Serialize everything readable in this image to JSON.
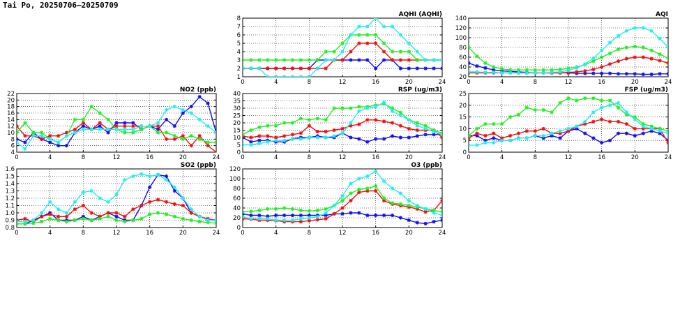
{
  "title": "Tai Po, 20250706–20250709",
  "colors": {
    "blue": "#1010ee",
    "red": "#ee1010",
    "green": "#22ee22",
    "cyan": "#22eeee"
  },
  "chart_data": [
    {
      "id": "aqhi",
      "type": "line",
      "title": "AQHI (AQHI)",
      "x": [
        0,
        1,
        2,
        3,
        4,
        5,
        6,
        7,
        8,
        9,
        10,
        11,
        12,
        13,
        14,
        15,
        16,
        17,
        18,
        19,
        20,
        21,
        22,
        23,
        24
      ],
      "xticks": [
        0,
        4,
        8,
        12,
        16,
        20,
        24
      ],
      "xlim": [
        0,
        24
      ],
      "ylim": [
        1,
        8
      ],
      "yticks": [
        1,
        2,
        3,
        4,
        5,
        6,
        7,
        8
      ],
      "grid": true,
      "series": [
        {
          "color": "blue",
          "values": [
            2,
            2,
            2,
            2,
            2,
            2,
            2,
            2,
            2,
            3,
            3,
            3,
            3,
            3,
            3,
            3,
            2,
            3,
            3,
            2,
            2,
            2,
            2,
            2,
            2
          ]
        },
        {
          "color": "red",
          "values": [
            2,
            2,
            2,
            2,
            2,
            2,
            2,
            2,
            2,
            2,
            2,
            3,
            3,
            4,
            5,
            5,
            5,
            4,
            3,
            3,
            3,
            3,
            3,
            3,
            3
          ]
        },
        {
          "color": "green",
          "values": [
            3,
            3,
            3,
            3,
            3,
            3,
            3,
            3,
            3,
            3,
            4,
            4,
            5,
            6,
            6,
            6,
            6,
            5,
            4,
            4,
            4,
            3,
            3,
            3,
            3
          ]
        },
        {
          "color": "cyan",
          "values": [
            2,
            2,
            2,
            1,
            1,
            1,
            1,
            1,
            1,
            2,
            3,
            3,
            4,
            6,
            7,
            7,
            8,
            7,
            7,
            6,
            5,
            4,
            3,
            3,
            3
          ]
        }
      ]
    },
    {
      "id": "aqi",
      "type": "line",
      "title": "AQI",
      "x": [
        0,
        1,
        2,
        3,
        4,
        5,
        6,
        7,
        8,
        9,
        10,
        11,
        12,
        13,
        14,
        15,
        16,
        17,
        18,
        19,
        20,
        21,
        22,
        23,
        24
      ],
      "xticks": [
        0,
        4,
        8,
        12,
        16,
        20,
        24
      ],
      "xlim": [
        0,
        24
      ],
      "ylim": [
        20,
        140
      ],
      "yticks": [
        20,
        40,
        60,
        80,
        100,
        120,
        140
      ],
      "grid": true,
      "series": [
        {
          "color": "blue",
          "values": [
            48,
            42,
            38,
            34,
            32,
            31,
            30,
            29,
            28,
            28,
            28,
            28,
            28,
            27,
            27,
            27,
            27,
            27,
            26,
            26,
            26,
            25,
            25,
            26,
            26
          ]
        },
        {
          "color": "red",
          "values": [
            28,
            28,
            28,
            28,
            28,
            28,
            28,
            28,
            28,
            28,
            28,
            28,
            29,
            30,
            32,
            35,
            40,
            46,
            52,
            57,
            60,
            60,
            57,
            53,
            48
          ]
        },
        {
          "color": "green",
          "values": [
            80,
            62,
            48,
            40,
            36,
            34,
            34,
            34,
            34,
            34,
            34,
            35,
            37,
            40,
            45,
            52,
            60,
            68,
            76,
            80,
            82,
            80,
            74,
            66,
            58
          ]
        },
        {
          "color": "cyan",
          "values": [
            30,
            30,
            29,
            29,
            28,
            28,
            28,
            28,
            28,
            28,
            29,
            30,
            33,
            38,
            46,
            58,
            74,
            90,
            104,
            114,
            120,
            120,
            114,
            98,
            80
          ]
        }
      ]
    },
    {
      "id": "no2",
      "type": "line",
      "title": "NO2 (ppb)",
      "x": [
        0,
        1,
        2,
        3,
        4,
        5,
        6,
        7,
        8,
        9,
        10,
        11,
        12,
        13,
        14,
        15,
        16,
        17,
        18,
        19,
        20,
        21,
        22,
        23,
        24
      ],
      "xticks": [
        0,
        4,
        8,
        12,
        16,
        20,
        24
      ],
      "xlim": [
        0,
        24
      ],
      "ylim": [
        4,
        22
      ],
      "yticks": [
        4,
        6,
        8,
        10,
        12,
        14,
        16,
        18,
        20,
        22
      ],
      "grid": true,
      "series": [
        {
          "color": "blue",
          "values": [
            8,
            7,
            10,
            8,
            7,
            6,
            6,
            10,
            12,
            11,
            12,
            10,
            13,
            13,
            13,
            11,
            12,
            11,
            14,
            12,
            16,
            18,
            21,
            19,
            10
          ]
        },
        {
          "color": "red",
          "values": [
            12,
            9,
            9,
            8,
            9,
            9,
            10,
            11,
            13,
            11,
            13,
            11,
            12,
            12,
            12,
            12,
            12,
            12,
            8,
            8,
            9,
            6,
            9,
            6,
            4
          ]
        },
        {
          "color": "green",
          "values": [
            10,
            13,
            10,
            10,
            8,
            7,
            9,
            14,
            14,
            18,
            16,
            14,
            11,
            10,
            10,
            11,
            12,
            10,
            10,
            9,
            8,
            9,
            8,
            7,
            7
          ]
        },
        {
          "color": "cyan",
          "values": [
            7,
            5,
            9,
            9,
            8,
            7,
            9,
            10,
            11,
            11,
            11,
            11,
            11,
            11,
            11,
            12,
            12,
            13,
            17,
            18,
            17,
            16,
            14,
            12,
            10
          ]
        }
      ]
    },
    {
      "id": "rsp",
      "type": "line",
      "title": "RSP (ug/m3)",
      "x": [
        0,
        1,
        2,
        3,
        4,
        5,
        6,
        7,
        8,
        9,
        10,
        11,
        12,
        13,
        14,
        15,
        16,
        17,
        18,
        19,
        20,
        21,
        22,
        23,
        24
      ],
      "xticks": [
        0,
        4,
        8,
        12,
        16,
        20,
        24
      ],
      "xlim": [
        0,
        24
      ],
      "ylim": [
        0,
        40
      ],
      "yticks": [
        0,
        5,
        10,
        15,
        20,
        25,
        30,
        35,
        40
      ],
      "grid": true,
      "series": [
        {
          "color": "blue",
          "values": [
            10,
            7,
            8,
            8,
            7,
            7,
            9,
            10,
            10,
            11,
            10,
            10,
            13,
            10,
            9,
            7,
            9,
            9,
            11,
            10,
            10,
            11,
            12,
            12,
            12
          ]
        },
        {
          "color": "red",
          "values": [
            11,
            10,
            11,
            11,
            10,
            11,
            12,
            13,
            18,
            14,
            14,
            15,
            16,
            18,
            19,
            22,
            22,
            21,
            20,
            18,
            16,
            15,
            15,
            15,
            10
          ]
        },
        {
          "color": "green",
          "values": [
            12,
            15,
            17,
            18,
            18,
            20,
            20,
            23,
            22,
            23,
            22,
            30,
            30,
            30,
            31,
            31,
            32,
            33,
            30,
            27,
            22,
            20,
            18,
            15,
            13
          ]
        },
        {
          "color": "cyan",
          "values": [
            5,
            5,
            6,
            7,
            8,
            8,
            9,
            9,
            10,
            10,
            10,
            11,
            13,
            20,
            28,
            30,
            31,
            34,
            28,
            25,
            22,
            18,
            16,
            14,
            12
          ]
        }
      ]
    },
    {
      "id": "fsp",
      "type": "line",
      "title": "FSP (ug/m3)",
      "x": [
        0,
        1,
        2,
        3,
        4,
        5,
        6,
        7,
        8,
        9,
        10,
        11,
        12,
        13,
        14,
        15,
        16,
        17,
        18,
        19,
        20,
        21,
        22,
        23,
        24
      ],
      "xticks": [
        0,
        4,
        8,
        12,
        16,
        20,
        24
      ],
      "xlim": [
        0,
        24
      ],
      "ylim": [
        0,
        25
      ],
      "yticks": [
        0,
        5,
        10,
        15,
        20,
        25
      ],
      "grid": true,
      "series": [
        {
          "color": "blue",
          "values": [
            7,
            7,
            5,
            6,
            5,
            5,
            6,
            6,
            7,
            6,
            7,
            6,
            9,
            10,
            8,
            6,
            4,
            5,
            8,
            8,
            7,
            8,
            9,
            8,
            5
          ]
        },
        {
          "color": "red",
          "values": [
            6,
            8,
            7,
            8,
            6,
            7,
            8,
            9,
            9,
            10,
            8,
            8,
            9,
            11,
            12,
            13,
            14,
            13,
            13,
            12,
            10,
            10,
            10,
            10,
            4
          ]
        },
        {
          "color": "green",
          "values": [
            7,
            10,
            12,
            12,
            12,
            15,
            16,
            19,
            18,
            18,
            17,
            21,
            23,
            22,
            23,
            23,
            22,
            22,
            19,
            16,
            15,
            12,
            11,
            10,
            9
          ]
        },
        {
          "color": "cyan",
          "values": [
            3,
            3,
            4,
            4,
            5,
            5,
            6,
            6,
            7,
            7,
            8,
            9,
            10,
            11,
            13,
            17,
            19,
            20,
            21,
            17,
            14,
            11,
            10,
            9,
            8
          ]
        }
      ]
    },
    {
      "id": "so2",
      "type": "line",
      "title": "SO2 (ppb)",
      "x": [
        0,
        1,
        2,
        3,
        4,
        5,
        6,
        7,
        8,
        9,
        10,
        11,
        12,
        13,
        14,
        15,
        16,
        17,
        18,
        19,
        20,
        21,
        22,
        23,
        24
      ],
      "xticks": [
        0,
        4,
        8,
        12,
        16,
        20,
        24
      ],
      "xlim": [
        0,
        24
      ],
      "ylim": [
        0.8,
        1.6
      ],
      "yticks": [
        0.8,
        0.9,
        1.0,
        1.1,
        1.2,
        1.3,
        1.4,
        1.5,
        1.6
      ],
      "grid": true,
      "series": [
        {
          "color": "blue",
          "values": [
            0.85,
            0.85,
            0.9,
            0.95,
            1.0,
            0.9,
            0.9,
            0.9,
            0.95,
            0.9,
            0.95,
            1.0,
            0.95,
            0.9,
            0.9,
            1.1,
            1.35,
            1.52,
            1.5,
            1.3,
            1.2,
            1.0,
            0.95,
            0.9,
            0.9
          ]
        },
        {
          "color": "red",
          "values": [
            0.9,
            0.92,
            0.88,
            0.95,
            0.98,
            0.95,
            0.95,
            1.05,
            1.1,
            1.0,
            0.95,
            1.0,
            1.0,
            0.95,
            1.05,
            1.1,
            1.15,
            1.18,
            1.15,
            1.12,
            1.1,
            1.0,
            0.95,
            0.92,
            0.9
          ]
        },
        {
          "color": "green",
          "values": [
            0.85,
            0.85,
            0.86,
            0.88,
            0.92,
            0.9,
            0.88,
            0.9,
            0.92,
            0.9,
            0.92,
            0.95,
            0.9,
            0.88,
            0.9,
            0.92,
            0.98,
            1.0,
            0.98,
            0.95,
            0.92,
            0.9,
            0.88,
            0.87,
            0.86
          ]
        },
        {
          "color": "cyan",
          "values": [
            0.88,
            0.88,
            0.9,
            1.0,
            1.15,
            1.05,
            1.0,
            1.15,
            1.28,
            1.3,
            1.2,
            1.15,
            1.25,
            1.45,
            1.5,
            1.53,
            1.5,
            1.52,
            1.45,
            1.35,
            1.2,
            1.05,
            0.95,
            0.9,
            0.9
          ]
        }
      ]
    },
    {
      "id": "o3",
      "type": "line",
      "title": "O3 (ppb)",
      "x": [
        0,
        1,
        2,
        3,
        4,
        5,
        6,
        7,
        8,
        9,
        10,
        11,
        12,
        13,
        14,
        15,
        16,
        17,
        18,
        19,
        20,
        21,
        22,
        23,
        24
      ],
      "xticks": [
        0,
        4,
        8,
        12,
        16,
        20,
        24
      ],
      "xlim": [
        0,
        24
      ],
      "ylim": [
        0,
        120
      ],
      "yticks": [
        0,
        20,
        40,
        60,
        80,
        100,
        120
      ],
      "grid": true,
      "series": [
        {
          "color": "blue",
          "values": [
            28,
            25,
            25,
            23,
            25,
            25,
            25,
            25,
            25,
            25,
            25,
            28,
            28,
            30,
            30,
            25,
            25,
            25,
            25,
            20,
            15,
            10,
            8,
            12,
            15
          ]
        },
        {
          "color": "red",
          "values": [
            18,
            17,
            15,
            15,
            14,
            12,
            12,
            12,
            14,
            16,
            18,
            28,
            40,
            55,
            72,
            75,
            75,
            55,
            48,
            45,
            42,
            38,
            32,
            35,
            55
          ]
        },
        {
          "color": "green",
          "values": [
            32,
            33,
            35,
            38,
            38,
            40,
            38,
            35,
            34,
            35,
            38,
            45,
            55,
            70,
            78,
            80,
            85,
            60,
            50,
            48,
            45,
            42,
            38,
            35,
            32
          ]
        },
        {
          "color": "cyan",
          "values": [
            22,
            18,
            18,
            18,
            15,
            15,
            15,
            18,
            20,
            22,
            30,
            45,
            65,
            90,
            100,
            105,
            115,
            95,
            80,
            70,
            55,
            45,
            38,
            30,
            25
          ]
        }
      ]
    }
  ]
}
